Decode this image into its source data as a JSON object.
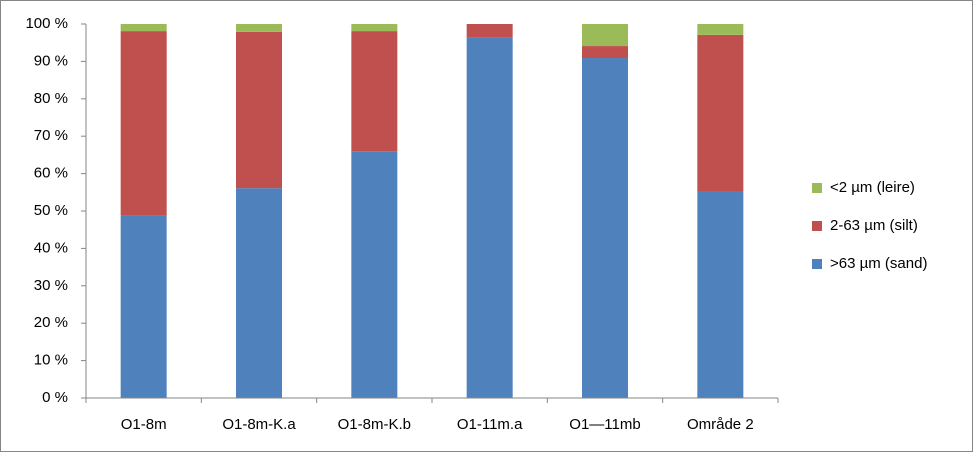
{
  "chart_data": {
    "type": "stacked_bar",
    "categories": [
      "O1-8m",
      "O1-8m-K.a",
      "O1-8m-K.b",
      "O1-11m.a",
      "O1—11mb",
      "Område 2"
    ],
    "series": [
      {
        "name": ">63 µm (sand)",
        "color": "#4f81bd",
        "values": [
          48.7,
          56.1,
          66.0,
          96.5,
          90.9,
          55.1
        ]
      },
      {
        "name": "2-63 µm (silt)",
        "color": "#c0504d",
        "values": [
          49.4,
          41.8,
          32.1,
          3.5,
          3.2,
          42.0
        ]
      },
      {
        "name": "<2 µm (leire)",
        "color": "#9bbb59",
        "values": [
          1.9,
          2.1,
          1.9,
          0,
          5.9,
          2.9
        ]
      }
    ],
    "ylim": [
      0,
      100
    ],
    "yticks": [
      {
        "value": 0,
        "label": "0 %"
      },
      {
        "value": 10,
        "label": "10 %"
      },
      {
        "value": 20,
        "label": "20 %"
      },
      {
        "value": 30,
        "label": "30 %"
      },
      {
        "value": 40,
        "label": "40 %"
      },
      {
        "value": 50,
        "label": "50 %"
      },
      {
        "value": 60,
        "label": "60 %"
      },
      {
        "value": 70,
        "label": "70 %"
      },
      {
        "value": 80,
        "label": "80 %"
      },
      {
        "value": 90,
        "label": "90 %"
      },
      {
        "value": 100,
        "label": "100 %"
      }
    ],
    "legend": "right"
  }
}
